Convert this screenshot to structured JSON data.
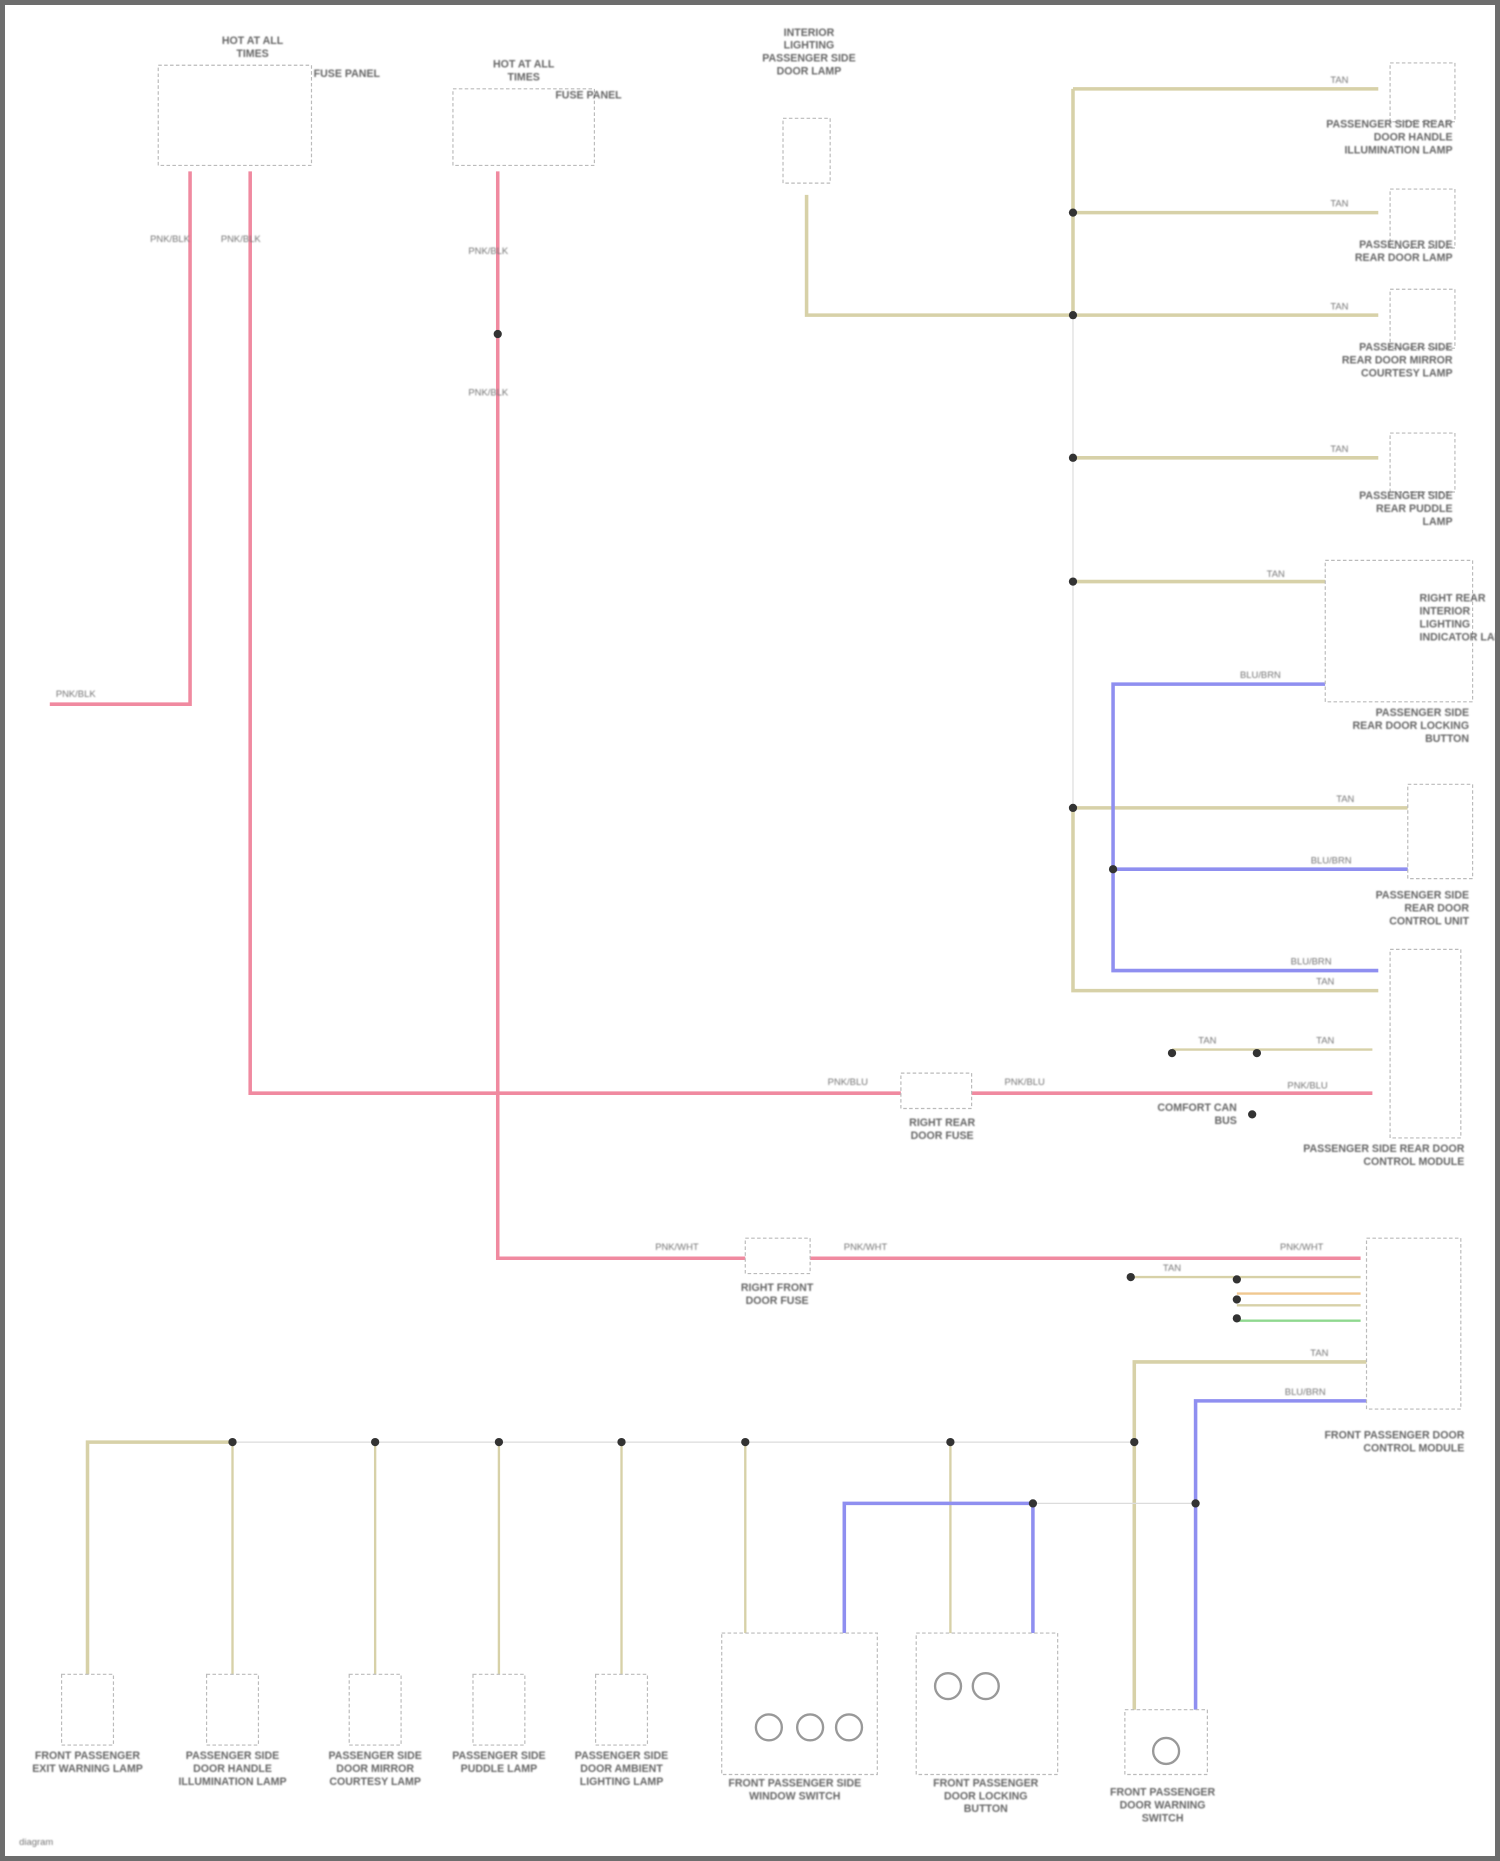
{
  "colors": {
    "pink": "#f08aa0",
    "tan": "#d7d1a8",
    "blue": "#8f8ff0",
    "green": "#8fd88f",
    "orange": "#f0c890",
    "ground": "#dcdcdc",
    "box": "#bbbbbb",
    "splice": "#333333"
  },
  "wire_labels": {
    "pink_a": "PNK/BLK",
    "pink_b": "PNK/BLU",
    "pink_c": "PNK/WHT",
    "tan": "TAN",
    "blue": "BLU/BRN",
    "blue2": "BLU/BRN"
  },
  "components": {
    "fuse_panel_a": "HOT AT ALL TIMES",
    "fuse_panel_a_name": "FUSE PANEL",
    "fuse_panel_b": "HOT AT ALL TIMES",
    "fuse_panel_b_name": "FUSE PANEL",
    "top_connector": "INTERIOR LIGHTING PASSENGER SIDE DOOR LAMP",
    "lamp_r1": "PASSENGER SIDE REAR DOOR HANDLE ILLUMINATION LAMP",
    "lamp_r2": "PASSENGER SIDE REAR DOOR LAMP",
    "lamp_r3": "PASSENGER SIDE REAR DOOR MIRROR COURTESY LAMP",
    "lamp_r4": "PASSENGER SIDE REAR PUDDLE LAMP",
    "module_r5": "RIGHT REAR INTERIOR LIGHTING INDICATOR LAMP",
    "module_r5_name": "PASSENGER SIDE REAR DOOR LOCKING BUTTON",
    "module_r6": "PASSENGER SIDE REAR DOOR CONTROL UNIT",
    "fuse_mid": "RIGHT REAR DOOR FUSE",
    "can_bus": "COMFORT CAN BUS",
    "module_rear": "PASSENGER SIDE REAR DOOR CONTROL MODULE",
    "fuse_low": "RIGHT FRONT DOOR FUSE",
    "front_module": "FRONT PASSENGER DOOR CONTROL MODULE",
    "bottom_1": "FRONT PASSENGER EXIT WARNING LAMP",
    "bottom_2": "PASSENGER SIDE DOOR HANDLE ILLUMINATION LAMP",
    "bottom_3": "PASSENGER SIDE DOOR MIRROR COURTESY LAMP",
    "bottom_4": "PASSENGER SIDE PUDDLE LAMP",
    "bottom_5": "PASSENGER SIDE DOOR AMBIENT LIGHTING LAMP",
    "bottom_6": "FRONT PASSENGER SIDE WINDOW SWITCH",
    "bottom_7": "FRONT PASSENGER DOOR LOCKING BUTTON",
    "bottom_8": "FRONT PASSENGER DOOR WARNING SWITCH",
    "footer": "diagram"
  }
}
